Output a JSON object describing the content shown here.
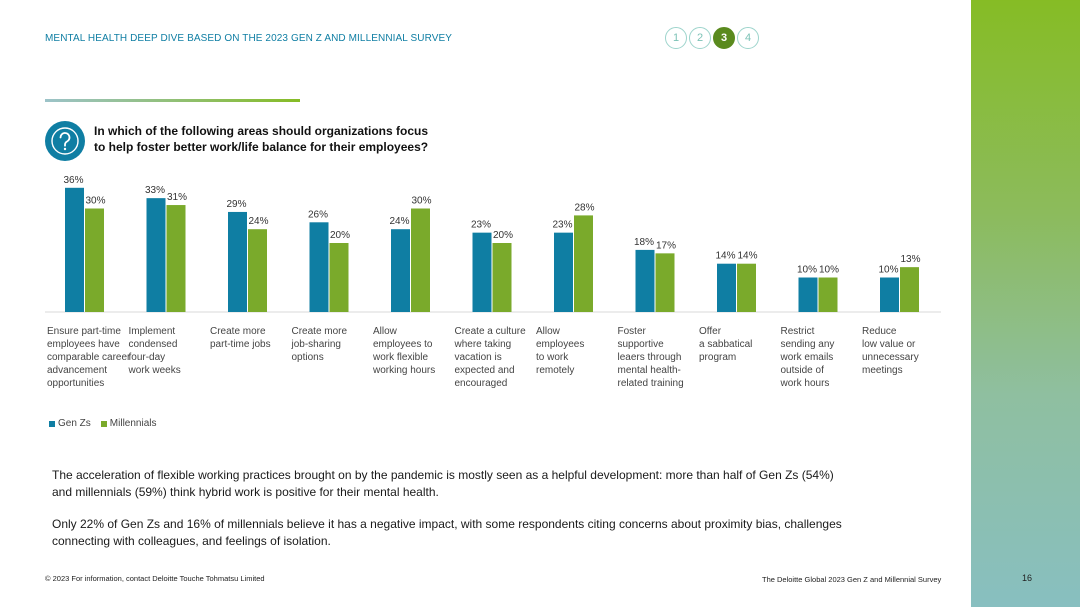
{
  "header": {
    "title": "MENTAL HEALTH DEEP DIVE BASED ON THE 2023 GEN Z AND MILLENNIAL SURVEY"
  },
  "steps": [
    "1",
    "2",
    "3",
    "4"
  ],
  "active_step": 2,
  "question": {
    "line1": "In which of the following areas should organizations focus",
    "line2": "to help foster better work/life balance for their employees?"
  },
  "chart_data": {
    "type": "bar",
    "title": "",
    "categories": [
      "Ensure part-time employees have comparable career advancement opportunities",
      "Implement condensed four-day work weeks",
      "Create more part-time jobs",
      "Create more job-sharing options",
      "Allow employees to work flexible working hours",
      "Create a culture where taking vacation is expected and encouraged",
      "Allow employees to work remotely",
      "Foster supportive leaers through mental health-related training",
      "Offer a sabbatical program",
      "Restrict sending any work emails outside of work hours",
      "Reduce low value or unnecessary meetings"
    ],
    "series": [
      {
        "name": "Gen Zs",
        "color": "#0f7ea3",
        "values": [
          36,
          33,
          29,
          26,
          24,
          23,
          23,
          18,
          14,
          10,
          10
        ]
      },
      {
        "name": "Millennials",
        "color": "#7aaa2b",
        "values": [
          30,
          31,
          24,
          20,
          30,
          20,
          28,
          17,
          14,
          10,
          13
        ]
      }
    ],
    "value_suffix": "%",
    "ylim": [
      0,
      40
    ],
    "grid": false,
    "legend_position": "bottom-left"
  },
  "category_lines": [
    [
      "Ensure part-time",
      "employees have",
      "comparable career",
      "advancement",
      "opportunities"
    ],
    [
      "Implement",
      "condensed",
      "four-day",
      "work weeks"
    ],
    [
      "Create more",
      "part-time jobs"
    ],
    [
      "Create more",
      "job-sharing",
      "options"
    ],
    [
      "Allow",
      "employees to",
      "work flexible",
      "working hours"
    ],
    [
      "Create a culture",
      "where taking",
      "vacation is",
      "expected and",
      "encouraged"
    ],
    [
      "Allow",
      "employees",
      "to work",
      "remotely"
    ],
    [
      "Foster",
      "supportive",
      "leaers through",
      "mental health-",
      "related training"
    ],
    [
      "Offer",
      "a sabbatical",
      "program"
    ],
    [
      "Restrict",
      "sending any",
      "work emails",
      "outside of",
      "work hours"
    ],
    [
      "Reduce",
      "low value or",
      "unnecessary",
      "meetings"
    ]
  ],
  "body": {
    "p1": "The acceleration of flexible working practices brought on by the pandemic is mostly seen as a helpful development: more than half of Gen Zs (54%) and millennials (59%) think hybrid work is positive for their mental health.",
    "p2": "Only 22% of Gen Zs and 16% of millennials believe it has a negative impact, with some respondents citing concerns about proximity bias, challenges connecting with colleagues, and feelings of isolation."
  },
  "footer": {
    "left": "© 2023 For information, contact Deloitte Touche Tohmatsu Limited",
    "right": "The Deloitte Global 2023 Gen Z and Millennial Survey",
    "page": "16"
  },
  "colors": {
    "accent_blue": "#0f7ea3",
    "accent_green": "#7aaa2b",
    "active_step": "#5a8a1e"
  }
}
